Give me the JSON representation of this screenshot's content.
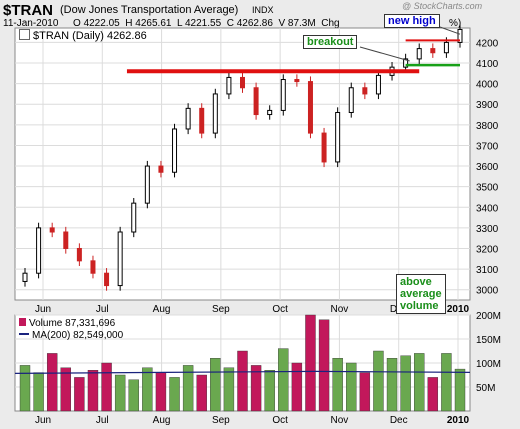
{
  "header": {
    "symbol": "$TRAN",
    "name": "(Dow Jones Transportation Average)",
    "exchange": "INDX",
    "date": "11-Jan-2010",
    "open_label": "O",
    "open": "4222.05",
    "high_label": "H",
    "high": "4265.61",
    "low_label": "L",
    "low": "4221.55",
    "close_label": "C",
    "close": "4262.86",
    "volume_label": "V",
    "volume": "87.3M",
    "change_label": "Chg",
    "change_suffix": "%)",
    "watermark": "@ StockCharts.com"
  },
  "legend": {
    "price": "$TRAN (Daily) 4262.86",
    "volume": "Volume 87,331,696",
    "ma": "MA(200) 82,549,000"
  },
  "annotations": {
    "breakout": "breakout",
    "new_high": "new high",
    "volume_note": [
      "above",
      "average",
      "volume"
    ]
  },
  "colors": {
    "up": "#000000",
    "down": "#cc2222",
    "vol_up": "#6aa84f",
    "vol_down": "#c2185b",
    "resistance": "#e01010",
    "support": "#18a018",
    "ma_line": "#1a237e",
    "annotation_text": "#1a8f1a",
    "new_high_text": "#0000cc"
  },
  "chart_data": [
    {
      "type": "line",
      "title": "$TRAN (Daily) 4262.86",
      "x_tick_labels": [
        "Jun",
        "Jul",
        "Aug",
        "Sep",
        "Oct",
        "Nov",
        "Dec",
        "2010"
      ],
      "y_tick_labels": [
        "3000",
        "3100",
        "3200",
        "3300",
        "3400",
        "3500",
        "3600",
        "3700",
        "3800",
        "3900",
        "4000",
        "4100",
        "4200"
      ],
      "ylim": [
        2950,
        4270
      ],
      "x": [
        "Jun 1",
        "Jun 8",
        "Jun 15",
        "Jun 22",
        "Jun 29",
        "Jul 6",
        "Jul 13",
        "Jul 20",
        "Jul 27",
        "Aug 3",
        "Aug 10",
        "Aug 17",
        "Aug 24",
        "Aug 31",
        "Sep 8",
        "Sep 15",
        "Sep 21",
        "Sep 28",
        "Oct 5",
        "Oct 12",
        "Oct 19",
        "Oct 26",
        "Nov 2",
        "Nov 9",
        "Nov 16",
        "Nov 23",
        "Nov 30",
        "Dec 7",
        "Dec 14",
        "Dec 21",
        "Dec 28",
        "Jan 4",
        "Jan 11"
      ],
      "series": [
        {
          "values": [
            3080,
            3300,
            3280,
            3200,
            3140,
            3080,
            3020,
            3280,
            3420,
            3600,
            3570,
            3780,
            3880,
            3760,
            3950,
            4030,
            3980,
            3850,
            3870,
            4020,
            4010,
            3760,
            3620,
            3860,
            3980,
            3950,
            4040,
            4080,
            4120,
            4170,
            4150,
            4200,
            4262.86
          ]
        }
      ],
      "grid": true,
      "resistance_level": 4060,
      "support_level": 4090,
      "recent_high_level": 4210
    },
    {
      "type": "bar",
      "title": "Volume 87,331,696",
      "y_tick_labels": [
        "50M",
        "100M",
        "150M",
        "200M"
      ],
      "ylim": [
        0,
        200
      ],
      "x_tick_labels": [
        "Jun",
        "Jul",
        "Aug",
        "Sep",
        "Oct",
        "Nov",
        "Dec",
        "2010"
      ],
      "values_millions": [
        95,
        80,
        120,
        90,
        70,
        85,
        100,
        75,
        65,
        90,
        80,
        70,
        95,
        75,
        110,
        90,
        125,
        95,
        85,
        130,
        100,
        200,
        190,
        110,
        100,
        80,
        125,
        110,
        115,
        120,
        70,
        120,
        87.3
      ],
      "ma_label": "MA(200) 82,549,000",
      "ma_value_millions": 82.5
    }
  ]
}
